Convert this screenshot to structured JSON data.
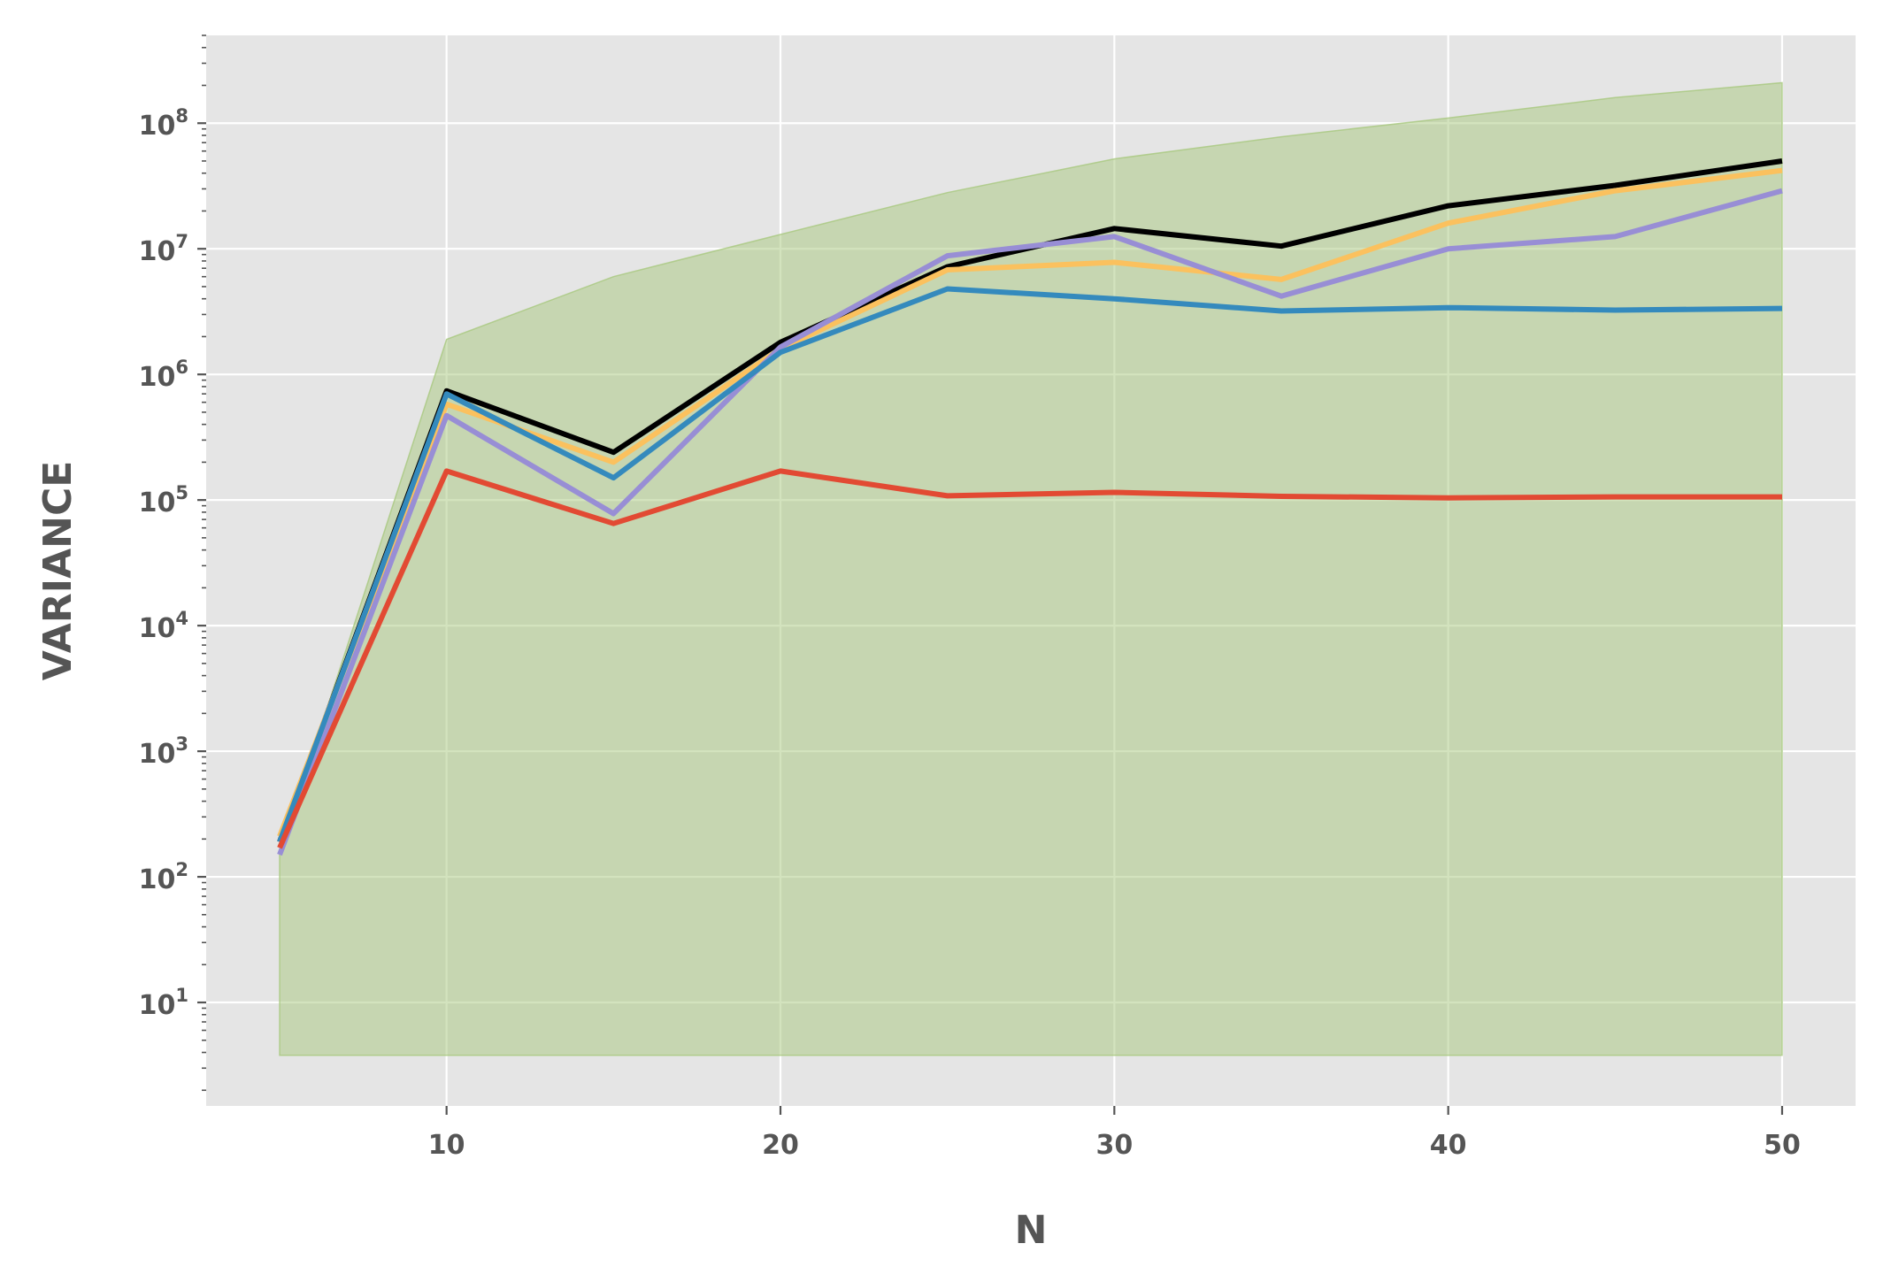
{
  "chart_data": {
    "type": "line",
    "title": "",
    "xlabel": "N",
    "ylabel": "VARIANCE",
    "xlim": [
      2.8,
      52.2
    ],
    "ylim": [
      1.5,
      500000000
    ],
    "yscale": "log",
    "grid": true,
    "legend": "none",
    "x_ticks": [
      10,
      20,
      30,
      40,
      50
    ],
    "y_ticks": [
      {
        "value": 10,
        "base": "10",
        "exp": "1"
      },
      {
        "value": 100,
        "base": "10",
        "exp": "2"
      },
      {
        "value": 1000,
        "base": "10",
        "exp": "3"
      },
      {
        "value": 10000,
        "base": "10",
        "exp": "4"
      },
      {
        "value": 100000,
        "base": "10",
        "exp": "5"
      },
      {
        "value": 1000000,
        "base": "10",
        "exp": "6"
      },
      {
        "value": 10000000,
        "base": "10",
        "exp": "7"
      },
      {
        "value": 100000000,
        "base": "10",
        "exp": "8"
      }
    ],
    "x": [
      5,
      10,
      15,
      20,
      25,
      30,
      35,
      40,
      45,
      50
    ],
    "band": {
      "color": "#a8c87e",
      "lower": [
        3.8,
        3.8,
        3.8,
        3.8,
        3.8,
        3.8,
        3.8,
        3.8,
        3.8,
        3.8
      ],
      "upper": [
        150,
        1900000,
        6000000,
        13000000,
        28000000,
        52000000,
        78000000,
        110000000,
        160000000,
        210000000
      ]
    },
    "series": [
      {
        "color": "#000000",
        "values": [
          190,
          740000,
          240000,
          1800000,
          7200000,
          14500000,
          10500000,
          22000000,
          32000000,
          50000000
        ]
      },
      {
        "color": "#fbc15e",
        "values": [
          210,
          580000,
          200000,
          1600000,
          6800000,
          7800000,
          5700000,
          16000000,
          29000000,
          42000000
        ]
      },
      {
        "color": "#988ed5",
        "values": [
          150,
          470000,
          78000,
          1650000,
          8800000,
          12500000,
          4200000,
          10000000,
          12500000,
          29000000
        ]
      },
      {
        "color": "#348abd",
        "values": [
          190,
          700000,
          150000,
          1500000,
          4800000,
          4000000,
          3200000,
          3400000,
          3250000,
          3350000
        ]
      },
      {
        "color": "#e24a33",
        "values": [
          170,
          170000,
          65000,
          170000,
          108000,
          115000,
          107000,
          104000,
          106000,
          106000
        ]
      }
    ]
  }
}
